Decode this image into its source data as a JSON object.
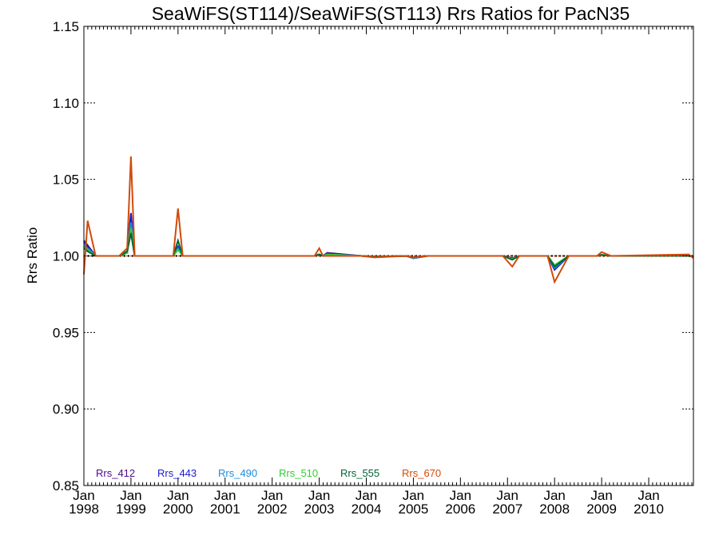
{
  "chart_data": {
    "type": "line",
    "title": "SeaWiFS(ST114)/SeaWiFS(ST113)  Rrs Ratios for PacN35",
    "xlabel": "",
    "ylabel": "Rrs Ratio",
    "xlim": [
      1998.0,
      2010.95
    ],
    "ylim": [
      0.85,
      1.15
    ],
    "yticks": [
      {
        "value": 0.85,
        "label": "0.85"
      },
      {
        "value": 0.9,
        "label": "0.90"
      },
      {
        "value": 0.95,
        "label": "0.95"
      },
      {
        "value": 1.0,
        "label": "1.00"
      },
      {
        "value": 1.05,
        "label": "1.05"
      },
      {
        "value": 1.1,
        "label": "1.10"
      },
      {
        "value": 1.15,
        "label": "1.15"
      }
    ],
    "xticks": [
      {
        "value": 1998,
        "month": "Jan",
        "year": "1998"
      },
      {
        "value": 1999,
        "month": "Jan",
        "year": "1999"
      },
      {
        "value": 2000,
        "month": "Jan",
        "year": "2000"
      },
      {
        "value": 2001,
        "month": "Jan",
        "year": "2001"
      },
      {
        "value": 2002,
        "month": "Jan",
        "year": "2002"
      },
      {
        "value": 2003,
        "month": "Jan",
        "year": "2003"
      },
      {
        "value": 2004,
        "month": "Jan",
        "year": "2004"
      },
      {
        "value": 2005,
        "month": "Jan",
        "year": "2005"
      },
      {
        "value": 2006,
        "month": "Jan",
        "year": "2006"
      },
      {
        "value": 2007,
        "month": "Jan",
        "year": "2007"
      },
      {
        "value": 2008,
        "month": "Jan",
        "year": "2008"
      },
      {
        "value": 2009,
        "month": "Jan",
        "year": "2009"
      },
      {
        "value": 2010,
        "month": "Jan",
        "year": "2010"
      }
    ],
    "reference_line": {
      "y": 1.0,
      "style": "dotted",
      "color": "#000000"
    },
    "legend_position": "bottom-left",
    "series": [
      {
        "name": "Rrs_412",
        "color": "#4b0a8c",
        "x": [
          1998.0,
          1998.08,
          1998.25,
          1998.33,
          1998.75,
          1998.92,
          1999.0,
          1999.08,
          1999.9,
          2000.0,
          2000.1,
          2002.9,
          2003.0,
          2003.08,
          2003.17,
          2003.9,
          2004.17,
          2004.85,
          2005.0,
          2005.3,
          2006.9,
          2007.1,
          2007.25,
          2007.85,
          2008.0,
          2008.3,
          2008.9,
          2009.0,
          2009.2,
          2010.85,
          2010.95
        ],
        "y": [
          1.01,
          1.007,
          1.0,
          1.0,
          1.0,
          1.002,
          1.028,
          1.0,
          1.0,
          1.006,
          1.0,
          1.0,
          1.001,
          1.0,
          1.002,
          1.0,
          0.9995,
          1.0,
          0.9985,
          1.0,
          1.0,
          0.9985,
          1.0,
          1.0,
          0.991,
          1.0,
          1.0,
          1.0007,
          1.0,
          1.0,
          0.9995
        ]
      },
      {
        "name": "Rrs_443",
        "color": "#1a1ad2",
        "x": [
          1998.0,
          1998.08,
          1998.25,
          1998.33,
          1998.75,
          1998.92,
          1999.0,
          1999.08,
          1999.9,
          2000.0,
          2000.1,
          2002.9,
          2003.0,
          2003.08,
          2003.17,
          2003.9,
          2004.17,
          2004.85,
          2005.0,
          2005.3,
          2006.9,
          2007.1,
          2007.25,
          2007.85,
          2008.0,
          2008.3,
          2008.9,
          2009.0,
          2009.2,
          2010.85,
          2010.95
        ],
        "y": [
          1.009,
          1.006,
          1.0,
          1.0,
          1.0,
          1.002,
          1.027,
          1.0,
          1.0,
          1.006,
          1.0,
          1.0,
          1.001,
          1.0,
          1.0015,
          1.0,
          0.9995,
          1.0,
          0.9985,
          1.0,
          1.0,
          0.9985,
          1.0,
          1.0,
          0.991,
          1.0,
          1.0,
          1.0007,
          1.0,
          1.0,
          0.9995
        ]
      },
      {
        "name": "Rrs_490",
        "color": "#1e8cdc",
        "x": [
          1998.0,
          1998.08,
          1998.25,
          1998.33,
          1998.75,
          1998.92,
          1999.0,
          1999.08,
          1999.9,
          2000.0,
          2000.1,
          2002.9,
          2003.0,
          2003.08,
          2003.17,
          2003.9,
          2004.17,
          2004.85,
          2005.0,
          2005.3,
          2006.9,
          2007.1,
          2007.25,
          2007.85,
          2008.0,
          2008.3,
          2008.9,
          2009.0,
          2009.2,
          2010.85,
          2010.95
        ],
        "y": [
          1.007,
          1.005,
          1.0,
          1.0,
          1.0,
          1.002,
          1.022,
          1.0,
          1.0,
          1.005,
          1.0,
          1.0,
          1.001,
          1.0,
          1.001,
          1.0,
          0.9995,
          1.0,
          0.9985,
          1.0,
          1.0,
          0.998,
          1.0,
          1.0,
          0.992,
          1.0,
          1.0,
          1.0007,
          1.0,
          1.0,
          0.9995
        ]
      },
      {
        "name": "Rrs_510",
        "color": "#32cd32",
        "x": [
          1998.0,
          1998.08,
          1998.25,
          1998.33,
          1998.75,
          1998.92,
          1999.0,
          1999.08,
          1999.9,
          2000.0,
          2000.1,
          2002.9,
          2003.0,
          2003.08,
          2003.17,
          2003.9,
          2004.17,
          2004.85,
          2005.0,
          2005.3,
          2006.9,
          2007.1,
          2007.25,
          2007.85,
          2008.0,
          2008.3,
          2008.9,
          2009.0,
          2009.2,
          2010.85,
          2010.95
        ],
        "y": [
          1.006,
          1.004,
          1.0,
          1.0,
          1.0,
          1.002,
          1.018,
          1.0,
          1.0,
          1.004,
          1.0,
          1.0,
          1.001,
          1.0,
          1.001,
          1.0,
          0.9995,
          1.0,
          0.999,
          1.0,
          1.0,
          0.998,
          1.0,
          1.0,
          0.994,
          1.0,
          1.0,
          1.0007,
          1.0,
          1.0,
          0.9995
        ]
      },
      {
        "name": "Rrs_555",
        "color": "#006432",
        "x": [
          1998.0,
          1998.08,
          1998.25,
          1998.33,
          1998.75,
          1998.92,
          1999.0,
          1999.08,
          1999.9,
          2000.0,
          2000.1,
          2002.9,
          2003.0,
          2003.08,
          2003.17,
          2003.9,
          2004.17,
          2004.85,
          2005.0,
          2005.3,
          2006.9,
          2007.1,
          2007.25,
          2007.85,
          2008.0,
          2008.3,
          2008.9,
          2009.0,
          2009.2,
          2010.85,
          2010.95
        ],
        "y": [
          1.005,
          1.003,
          1.0,
          1.0,
          1.0,
          1.003,
          1.015,
          1.0,
          1.0,
          1.01,
          1.0,
          1.0,
          1.001,
          1.0,
          1.0,
          1.0,
          0.9995,
          1.0,
          0.999,
          1.0,
          1.0,
          0.9975,
          1.0,
          1.0,
          0.993,
          1.0,
          1.0,
          1.0007,
          1.0,
          1.0,
          0.9995
        ]
      },
      {
        "name": "Rrs_670",
        "color": "#d24a0a",
        "x": [
          1998.0,
          1998.08,
          1998.25,
          1998.33,
          1998.75,
          1998.92,
          1999.0,
          1999.08,
          1999.9,
          2000.0,
          2000.1,
          2002.5,
          2002.9,
          2003.0,
          2003.08,
          2003.17,
          2003.9,
          2004.17,
          2004.85,
          2005.0,
          2005.3,
          2006.9,
          2007.1,
          2007.25,
          2007.85,
          2008.0,
          2008.3,
          2008.9,
          2009.0,
          2009.2,
          2010.85,
          2010.95
        ],
        "y": [
          0.988,
          1.023,
          1.0,
          1.0,
          1.0,
          1.005,
          1.065,
          1.0,
          1.0,
          1.031,
          1.0,
          1.0,
          1.0,
          1.005,
          1.0,
          1.0,
          1.0,
          0.999,
          1.0,
          0.999,
          1.0,
          1.0,
          0.993,
          1.0,
          1.0,
          0.983,
          1.0,
          1.0,
          1.0025,
          1.0,
          1.001,
          0.9985
        ]
      }
    ]
  }
}
